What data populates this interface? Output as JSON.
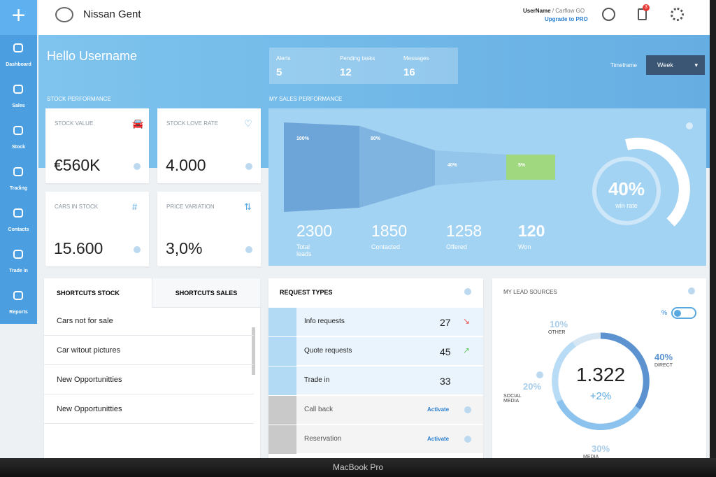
{
  "sidebar": {
    "items": [
      "Dashboard",
      "Sales",
      "Stock",
      "Trading",
      "Contacts",
      "Trade in",
      "Reports"
    ]
  },
  "header": {
    "title": "Nissan Gent",
    "user": "UserName",
    "user_suffix": "/ Carflow GO",
    "upgrade": "Upgrade to PRO",
    "badge": "3"
  },
  "greeting": "Hello Username",
  "counters": [
    {
      "label": "Alerts",
      "value": "5"
    },
    {
      "label": "Pending tasks",
      "value": "12"
    },
    {
      "label": "Messages",
      "value": "16"
    }
  ],
  "timeframe": {
    "label": "Timeframe",
    "value": "Week"
  },
  "stock": {
    "title": "STOCK PERFORMANCE",
    "cards": [
      {
        "label": "STOCK VALUE",
        "value": "€560K"
      },
      {
        "label": "STOCK LOVE RATE",
        "value": "4.000"
      },
      {
        "label": "CARS IN STOCK",
        "value": "15.600"
      },
      {
        "label": "PRICE VARIATION",
        "value": "3,0%"
      }
    ]
  },
  "sales": {
    "title": "MY SALES PERFORMANCE",
    "funnel": [
      {
        "pct": "100%",
        "value": "2300",
        "label": "Total leads"
      },
      {
        "pct": "80%",
        "value": "1850",
        "label": "Contacted"
      },
      {
        "pct": "40%",
        "value": "1258",
        "label": "Offered"
      },
      {
        "pct": "5%",
        "value": "120",
        "label": "Won"
      }
    ],
    "win_rate": {
      "value": "40%",
      "label": "win rate"
    }
  },
  "shortcuts": {
    "tabs": [
      "SHORTCUTS STOCK",
      "SHORTCUTS SALES"
    ],
    "items": [
      "Cars not for sale",
      "Car witout pictures",
      "New Opportunitties",
      "New Opportunitties"
    ]
  },
  "requests": {
    "title": "REQUEST TYPES",
    "rows": [
      {
        "label": "Info requests",
        "count": "27"
      },
      {
        "label": "Quote requests",
        "count": "45"
      },
      {
        "label": "Trade in",
        "count": "33"
      },
      {
        "label": "Call back",
        "action": "Activate"
      },
      {
        "label": "Reservation",
        "action": "Activate"
      }
    ]
  },
  "leads": {
    "title": "MY LEAD SOURCES",
    "toggle": "%",
    "total": "1.322",
    "change": "+2%",
    "sources": [
      {
        "pct": "10%",
        "label": "OTHER"
      },
      {
        "pct": "40%",
        "label": "DIRECT"
      },
      {
        "pct": "20%",
        "label": "SOCIAL MEDIA"
      },
      {
        "pct": "30%",
        "label": "MEDIA PARTNERS"
      }
    ]
  },
  "footer": "MacBook Pro"
}
